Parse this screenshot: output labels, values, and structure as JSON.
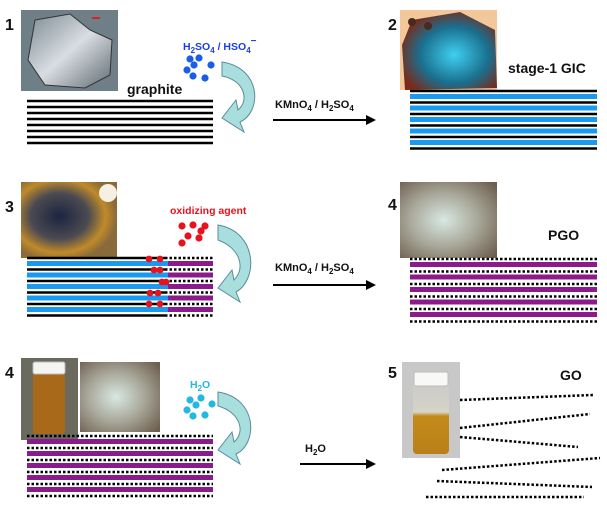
{
  "colors": {
    "intercalant": "#1a99f0",
    "oxidized_layer": "#8b1a8b",
    "acid_molecules": "#1a5ee6",
    "oxidizer_molecules": "#e6121e",
    "water_molecules": "#22b8e0",
    "curved_arrow": "#a9dede",
    "graphene": "#000000"
  },
  "panels": [
    {
      "number": "1",
      "label": "graphite",
      "reagent": "H2SO4 / HSO4−",
      "reagent_parts": [
        "H",
        "2",
        "SO",
        "4",
        " / HSO",
        "4",
        "−"
      ],
      "photo": "graphite-flake-micrograph"
    },
    {
      "number": "2",
      "label": "stage-1 GIC",
      "photo": "stage-1-gic-micrograph"
    },
    {
      "number": "3",
      "reagent": "oxidizing agent",
      "photo": "partially-oxidized-micrograph"
    },
    {
      "number": "4",
      "label": "PGO",
      "photo": "pgo-micrograph"
    },
    {
      "number": "4",
      "reagent": "H2O",
      "reagent_parts": [
        "H",
        "2",
        "O"
      ],
      "photo": "pgo-vial-and-micrograph"
    },
    {
      "number": "5",
      "label": "GO",
      "photo": "go-dispersion-vial"
    }
  ],
  "arrows": [
    {
      "text": "KMnO4 / H2SO4",
      "parts": [
        "KMnO",
        "4",
        " / H",
        "2",
        "SO",
        "4"
      ]
    },
    {
      "text": "KMnO4 / H2SO4",
      "parts": [
        "KMnO",
        "4",
        " / H",
        "2",
        "SO",
        "4"
      ]
    },
    {
      "text": "H2O",
      "parts": [
        "H",
        "2",
        "O"
      ]
    }
  ]
}
